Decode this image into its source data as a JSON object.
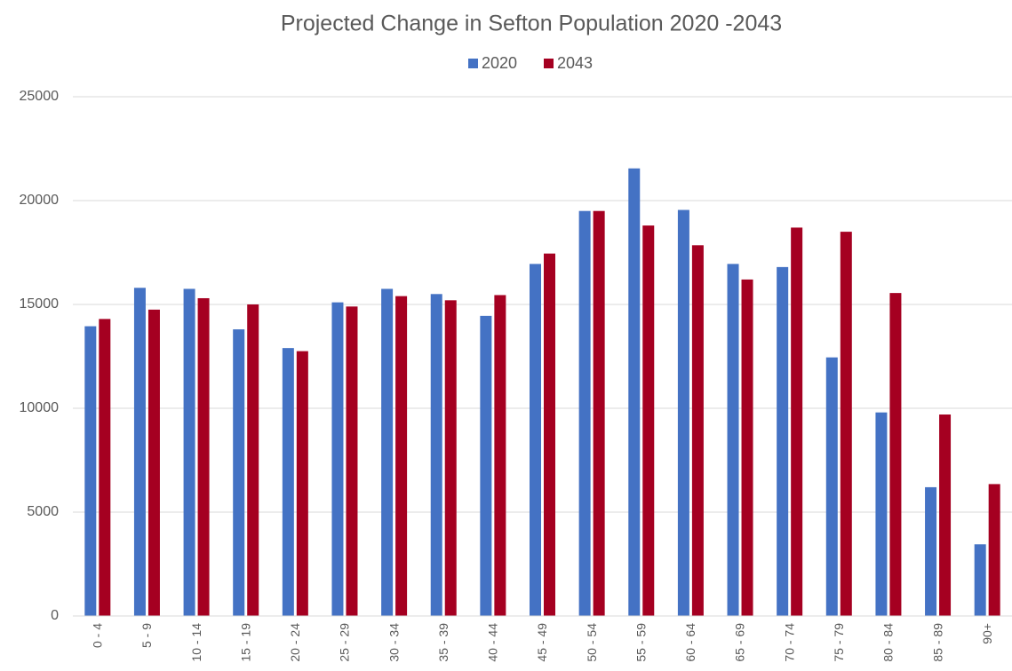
{
  "chart_data": {
    "type": "bar",
    "title": "Projected Change in Sefton Population 2020 -2043",
    "categories": [
      "0 - 4",
      "5 - 9",
      "10 - 14",
      "15 - 19",
      "20 - 24",
      "25 - 29",
      "30 - 34",
      "35 - 39",
      "40 - 44",
      "45 - 49",
      "50 - 54",
      "55 - 59",
      "60 - 64",
      "65 - 69",
      "70 - 74",
      "75 - 79",
      "80 - 84",
      "85 - 89",
      "90+"
    ],
    "series": [
      {
        "name": "2020",
        "color": "#4472c4",
        "values": [
          13950,
          15800,
          15750,
          13800,
          12900,
          15100,
          15750,
          15500,
          14450,
          16950,
          19500,
          21550,
          19550,
          16950,
          16800,
          12450,
          9800,
          6200,
          3450
        ]
      },
      {
        "name": "2043",
        "color": "#a50021",
        "values": [
          14300,
          14750,
          15300,
          15000,
          12750,
          14900,
          15400,
          15200,
          15450,
          17450,
          19500,
          18800,
          17850,
          16200,
          18700,
          18500,
          15550,
          9700,
          6350
        ]
      }
    ],
    "ylim": [
      0,
      25000
    ],
    "yticks": [
      0,
      5000,
      10000,
      15000,
      20000,
      25000
    ],
    "grid": true,
    "legend": "top"
  }
}
